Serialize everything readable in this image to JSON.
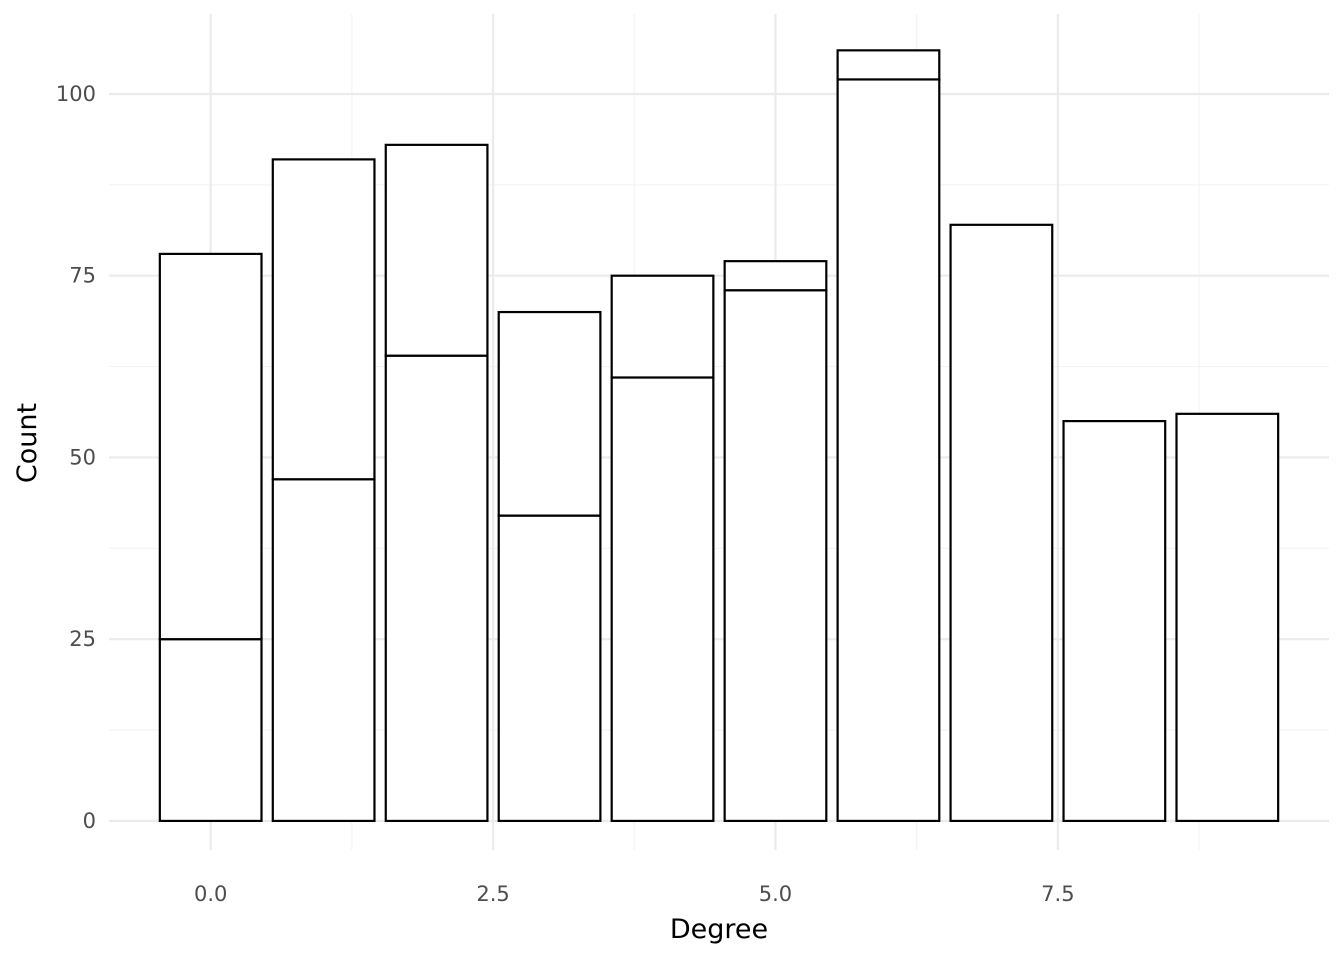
{
  "chart_data": {
    "type": "bar",
    "stacked": true,
    "xlabel": "Degree",
    "ylabel": "Count",
    "xlim": [
      -0.9,
      9.9
    ],
    "ylim": [
      -4,
      111
    ],
    "x_ticks": [
      0.0,
      2.5,
      5.0,
      7.5
    ],
    "x_tick_labels": [
      "0.0",
      "2.5",
      "5.0",
      "7.5"
    ],
    "y_ticks": [
      0,
      25,
      50,
      75,
      100
    ],
    "y_tick_labels": [
      "0",
      "25",
      "50",
      "75",
      "100"
    ],
    "grid": true,
    "bar_width": 0.9,
    "x": [
      0,
      1,
      2,
      3,
      4,
      5,
      6,
      7,
      8,
      9
    ],
    "series": [
      {
        "values": [
          25,
          47,
          64,
          42,
          61,
          73,
          102,
          82,
          55,
          56
        ]
      },
      {
        "values": [
          53,
          44,
          29,
          28,
          14,
          4,
          4,
          0,
          0,
          0
        ]
      }
    ],
    "totals": [
      78,
      91,
      93,
      70,
      75,
      77,
      106,
      82,
      55,
      56
    ]
  }
}
